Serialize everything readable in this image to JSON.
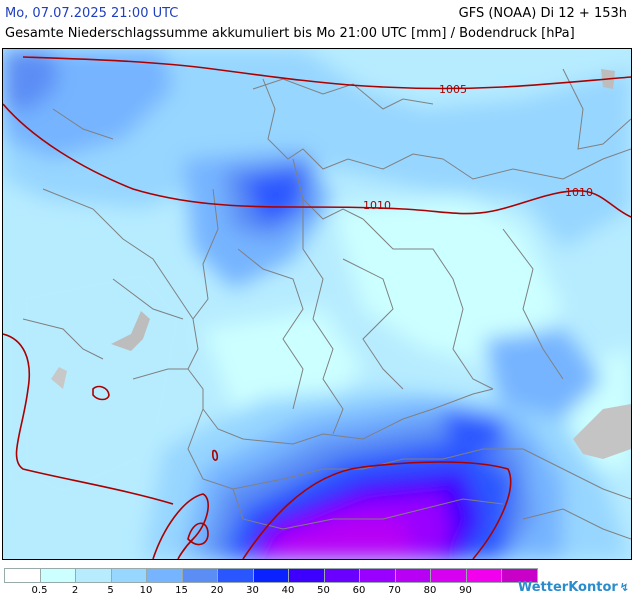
{
  "header": {
    "date_title": "Mo, 07.07.2025 21:00 UTC",
    "model_title": "GFS (NOAA) Di 12 + 153h",
    "description": "Gesamte Niederschlagssumme akkumuliert bis Mo 21:00 UTC [mm] / Bodendruck [hPa]"
  },
  "map": {
    "isobar_labels": [
      "1005",
      "1010",
      "1010"
    ]
  },
  "legend": {
    "swatches": [
      {
        "color": "#ffffff"
      },
      {
        "color": "#ccffff"
      },
      {
        "color": "#b7ecff"
      },
      {
        "color": "#97d6ff"
      },
      {
        "color": "#76b4ff"
      },
      {
        "color": "#5b8df5"
      },
      {
        "color": "#2a56ff"
      },
      {
        "color": "#0a22ff"
      },
      {
        "color": "#3d00ff"
      },
      {
        "color": "#6a00ff"
      },
      {
        "color": "#9900ff"
      },
      {
        "color": "#b800f5"
      },
      {
        "color": "#d700f0"
      },
      {
        "color": "#f200ee"
      },
      {
        "color": "#c800c8"
      }
    ],
    "labels": [
      "0.5",
      "2",
      "5",
      "10",
      "15",
      "20",
      "30",
      "40",
      "50",
      "60",
      "70",
      "80",
      "90"
    ]
  },
  "brand": {
    "name": "WetterKontor",
    "icon": "lightning-icon"
  },
  "colors": {
    "isobar": "#aa0000",
    "border": "#808080",
    "title_accent": "#1f3fbf"
  }
}
